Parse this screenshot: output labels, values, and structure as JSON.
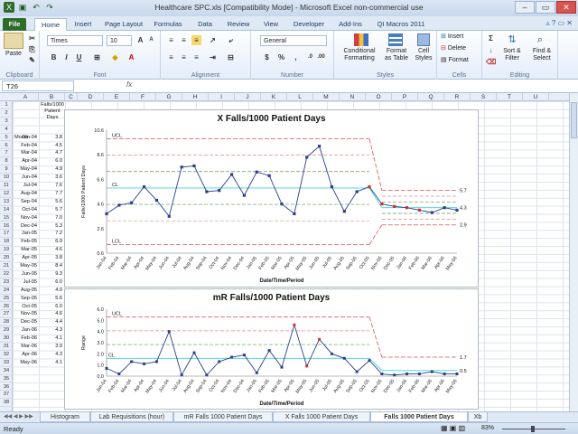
{
  "window": {
    "title": "Healthcare SPC.xls  [Compatibility Mode]  -  Microsoft Excel non-commercial use"
  },
  "ribbon_tabs": [
    {
      "label": "File"
    },
    {
      "label": "Home"
    },
    {
      "label": "Insert"
    },
    {
      "label": "Page Layout"
    },
    {
      "label": "Formulas"
    },
    {
      "label": "Data"
    },
    {
      "label": "Review"
    },
    {
      "label": "View"
    },
    {
      "label": "Developer"
    },
    {
      "label": "Add-Ins"
    },
    {
      "label": "QI Macros 2011"
    }
  ],
  "ribbon": {
    "paste": "Paste",
    "clipboard": "Clipboard",
    "font_name": "Times",
    "font_size": "10",
    "font": "Font",
    "alignment": "Alignment",
    "number_format": "General",
    "number": "Number",
    "conditional_formatting": "Conditional Formatting",
    "format_as_table": "Format as Table",
    "cell_styles": "Cell Styles",
    "styles": "Styles",
    "insert": "Insert",
    "delete": "Delete",
    "format": "Format",
    "cells": "Cells",
    "sort_filter": "Sort & Filter",
    "find_select": "Find & Select",
    "editing": "Editing",
    "sigma": "Σ",
    "dollar": "$",
    "percent": "%"
  },
  "formula_bar": {
    "name_box": "T26",
    "fx": "fx",
    "value": ""
  },
  "columns": [
    "A",
    "B",
    "C",
    "D",
    "E",
    "F",
    "G",
    "H",
    "I",
    "J",
    "K",
    "L",
    "M",
    "N",
    "O",
    "P",
    "Q",
    "R",
    "S",
    "T",
    "U"
  ],
  "row_count": 38,
  "table": {
    "header_month": "Month",
    "header_value": "Falls/1000 Patient Days",
    "rows": [
      [
        "Jan-04",
        "3.8"
      ],
      [
        "Feb-04",
        "4.5"
      ],
      [
        "Mar-04",
        "4.7"
      ],
      [
        "Apr-04",
        "6.0"
      ],
      [
        "May-04",
        "4.9"
      ],
      [
        "Jun-04",
        "3.6"
      ],
      [
        "Jul-04",
        "7.6"
      ],
      [
        "Aug-04",
        "7.7"
      ],
      [
        "Sep-04",
        "5.6"
      ],
      [
        "Oct-04",
        "5.7"
      ],
      [
        "Nov-04",
        "7.0"
      ],
      [
        "Dec-04",
        "5.3"
      ],
      [
        "Jan-05",
        "7.2"
      ],
      [
        "Feb-05",
        "6.9"
      ],
      [
        "Mar-05",
        "4.6"
      ],
      [
        "Apr-05",
        "3.8"
      ],
      [
        "May-05",
        "8.4"
      ],
      [
        "Jun-05",
        "9.3"
      ],
      [
        "Jul-05",
        "6.0"
      ],
      [
        "Aug-05",
        "4.0"
      ],
      [
        "Sep-05",
        "5.6"
      ],
      [
        "Oct-05",
        "6.0"
      ],
      [
        "Nov-05",
        "4.6"
      ],
      [
        "Dec-05",
        "4.4"
      ],
      [
        "Jan-06",
        "4.3"
      ],
      [
        "Feb-06",
        "4.1"
      ],
      [
        "Mar-06",
        "3.9"
      ],
      [
        "Apr-06",
        "4.3"
      ],
      [
        "May-06",
        "4.1"
      ]
    ]
  },
  "chart_data": [
    {
      "type": "line",
      "title": "X Falls/1000 Patient Days",
      "xlabel": "Date/Time/Period",
      "ylabel": "Falls/1000 Patient Days",
      "ylim": [
        0.6,
        10.6
      ],
      "yticks": [
        "0.6",
        "2.6",
        "4.6",
        "6.6",
        "8.6",
        "10.6"
      ],
      "categories": [
        "Jan-04",
        "Feb-04",
        "Mar-04",
        "Apr-04",
        "May-04",
        "Jun-04",
        "Jul-04",
        "Aug-04",
        "Sep-04",
        "Oct-04",
        "Nov-04",
        "Dec-04",
        "Jan-05",
        "Feb-05",
        "Mar-05",
        "Apr-05",
        "May-05",
        "Jun-05",
        "Jul-05",
        "Aug-05",
        "Sep-05",
        "Oct-05",
        "Nov-05",
        "Dec-05",
        "Jan-06",
        "Feb-06",
        "Mar-06",
        "Apr-06",
        "May-06"
      ],
      "values": [
        3.8,
        4.5,
        4.7,
        6.0,
        4.9,
        3.6,
        7.6,
        7.7,
        5.6,
        5.7,
        7.0,
        5.3,
        7.2,
        6.9,
        4.6,
        3.8,
        8.4,
        9.3,
        6.0,
        4.0,
        5.6,
        6.0,
        4.6,
        4.4,
        4.3,
        4.1,
        3.9,
        4.3,
        4.1
      ],
      "stage1": {
        "ucl": 9.9,
        "cl": 5.9,
        "lcl": 1.3,
        "ucl_label": "UCL",
        "cl_label": "CL",
        "lcl_label": "LCL"
      },
      "stage2": {
        "ucl": 5.7,
        "cl": 4.3,
        "lcl": 2.9,
        "ucl_label": "5.7",
        "cl_label": "4.3",
        "lcl_label": "2.9"
      },
      "red_points": [
        21,
        22,
        23,
        24,
        25
      ],
      "colors": {
        "line": "#2a3f8f",
        "ucl": "#e05050",
        "cl": "#3fd0d8",
        "sigma": "#5a9a5a",
        "red": "#d03030"
      }
    },
    {
      "type": "line",
      "title": "mR Falls/1000 Patient Days",
      "xlabel": "Date/Time/Period",
      "ylabel": "Range",
      "ylim": [
        0.0,
        6.0
      ],
      "yticks": [
        "0.0",
        "1.0",
        "2.0",
        "3.0",
        "4.0",
        "5.0",
        "6.0"
      ],
      "categories": [
        "Jan-04",
        "Feb-04",
        "Mar-04",
        "Apr-04",
        "May-04",
        "Jun-04",
        "Jul-04",
        "Aug-04",
        "Sep-04",
        "Oct-04",
        "Nov-04",
        "Dec-04",
        "Jan-05",
        "Feb-05",
        "Mar-05",
        "Apr-05",
        "May-05",
        "Jun-05",
        "Jul-05",
        "Aug-05",
        "Sep-05",
        "Oct-05",
        "Nov-05",
        "Dec-05",
        "Jan-06",
        "Feb-06",
        "Mar-06",
        "Apr-06",
        "May-06"
      ],
      "values": [
        0.7,
        0.2,
        1.3,
        1.1,
        1.3,
        4.0,
        0.1,
        2.1,
        0.1,
        1.3,
        1.7,
        1.9,
        0.3,
        2.3,
        0.8,
        4.6,
        0.9,
        3.3,
        2.0,
        1.6,
        0.4,
        1.4,
        0.2,
        0.1,
        0.2,
        0.2,
        0.4,
        0.2,
        0.2
      ],
      "ucl_stage1": 5.3,
      "cl_stage1": 1.6,
      "ucl_stage2": 1.7,
      "cl_stage2": 0.5,
      "ucl_label": "UCL",
      "cl_label": "CL",
      "ucl2_label": "1.7",
      "cl2_label": "0.5",
      "red_points": [
        15,
        16,
        17
      ],
      "colors": {
        "line": "#2a3f8f",
        "ucl": "#e05050",
        "cl": "#3fd0d8",
        "red": "#d03030"
      }
    }
  ],
  "sheet_tabs": [
    {
      "label": "Histogram",
      "active": false
    },
    {
      "label": "Lab Requisitions (hour)",
      "active": false
    },
    {
      "label": "mR Falls 1000 Patient Days",
      "active": false
    },
    {
      "label": "X Falls 1000 Patient Days",
      "active": false
    },
    {
      "label": "Falls 1000 Patient Days",
      "active": true
    },
    {
      "label": "Xb",
      "active": false
    }
  ],
  "status": {
    "ready": "Ready",
    "zoom": "83%"
  }
}
